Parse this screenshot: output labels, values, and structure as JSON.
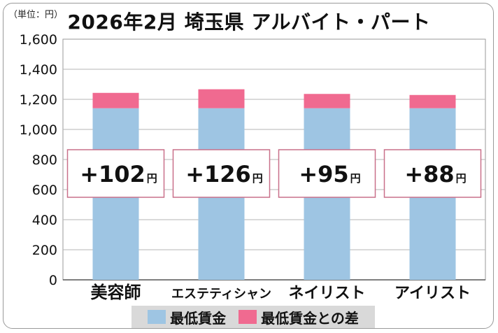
{
  "unit_label": "（単位：円）",
  "chart_data": {
    "type": "bar",
    "stacked": true,
    "title": "2026年2月 埼玉県 アルバイト・パート",
    "categories": [
      "美容師",
      "エステティシャン",
      "ネイリスト",
      "アイリスト"
    ],
    "series": [
      {
        "name": "最低賃金",
        "color": "#9ec5e3",
        "values": [
          1141,
          1141,
          1141,
          1141
        ]
      },
      {
        "name": "最低賃金との差",
        "color": "#f06a90",
        "values": [
          102,
          126,
          95,
          88
        ]
      }
    ],
    "diff_labels": [
      "+102",
      "+126",
      "+95",
      "+88"
    ],
    "diff_unit": "円",
    "ylim": [
      0,
      1600
    ],
    "yticks": [
      0,
      200,
      400,
      600,
      800,
      1000,
      1200,
      1400,
      1600
    ],
    "ytick_labels": [
      "0",
      "200",
      "400",
      "600",
      "800",
      "1,000",
      "1,200",
      "1,400",
      "1,600"
    ],
    "grid": true,
    "legend_position": "bottom"
  }
}
